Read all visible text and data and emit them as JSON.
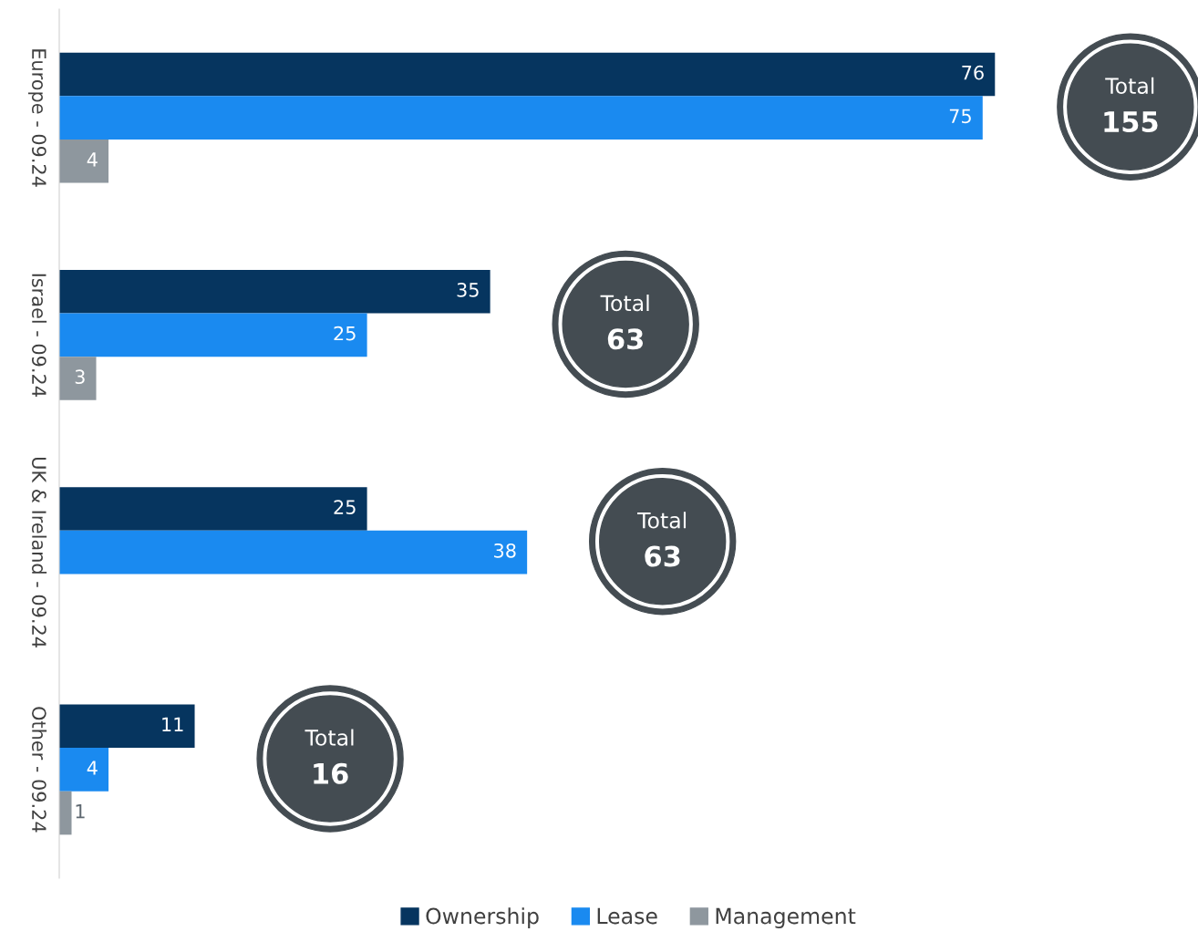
{
  "chart_data": {
    "type": "bar",
    "orientation": "horizontal",
    "categories": [
      "Europe - 09.24",
      "Israel - 09.24",
      "UK & Ireland - 09.24",
      "Other - 09.24"
    ],
    "series": [
      {
        "name": "Ownership",
        "color": "#06355f",
        "values": [
          76,
          35,
          25,
          11
        ]
      },
      {
        "name": "Lease",
        "color": "#1a8af0",
        "values": [
          75,
          25,
          38,
          4
        ]
      },
      {
        "name": "Management",
        "color": "#8e979e",
        "values": [
          4,
          3,
          null,
          1
        ]
      }
    ],
    "data_labels": true,
    "annotations": [
      "Total\n155",
      "Total\n63",
      "Total\n63",
      "Total\n16"
    ],
    "legend": "bottom",
    "grid": false
  }
}
